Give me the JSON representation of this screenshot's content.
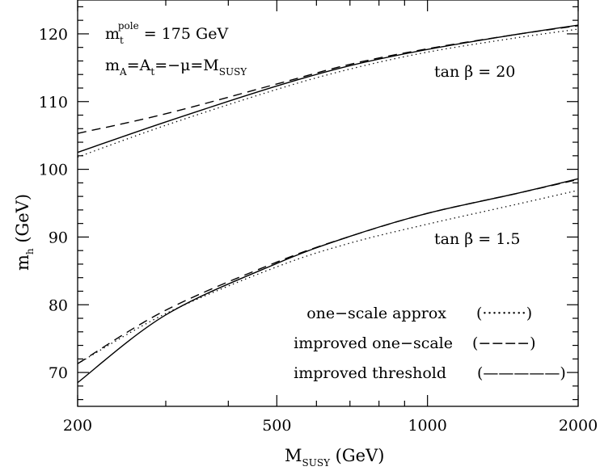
{
  "chart_data": {
    "type": "line",
    "xlabel": {
      "main": "M",
      "sub": "SUSY",
      "unit": " (GeV)"
    },
    "ylabel": {
      "main": "m",
      "sub": "h",
      "unit": " (GeV)"
    },
    "x_scale": "log",
    "xlim": [
      200,
      2000
    ],
    "ylim": [
      65,
      125
    ],
    "x_ticks": [
      200,
      500,
      1000,
      2000
    ],
    "y_ticks": [
      70,
      80,
      90,
      100,
      110,
      120
    ],
    "annotations": {
      "mtop": {
        "m": "m",
        "sub": "t",
        "sup": "pole",
        "rest": " = 175 GeV"
      },
      "params": {
        "m": "m",
        "a_sub": "A",
        "eq1": "=A",
        "t_sub": "t",
        "eq2": "=−μ=M",
        "susy_sub": "SUSY"
      },
      "tanb20": "tan β = 20",
      "tanb15": "tan β = 1.5"
    },
    "legend": [
      {
        "label": "one−scale approx",
        "sample": "(·········)",
        "style": "dotted"
      },
      {
        "label": "improved one−scale",
        "sample": "(−−−−)",
        "style": "dashed"
      },
      {
        "label": "improved threshold",
        "sample": "(—————)",
        "style": "solid"
      }
    ],
    "series": [
      {
        "group": "tanb20",
        "style": "dotted",
        "x": [
          200,
          300,
          500,
          700,
          1000,
          1500,
          2000
        ],
        "y": [
          101.8,
          106.5,
          111.8,
          114.8,
          117.3,
          119.4,
          120.7
        ]
      },
      {
        "group": "tanb20",
        "style": "dashed",
        "x": [
          200,
          300,
          500,
          700,
          1000,
          1500,
          2000
        ],
        "y": [
          105.3,
          108.2,
          112.6,
          115.5,
          117.8,
          119.9,
          121.2
        ]
      },
      {
        "group": "tanb20",
        "style": "solid",
        "x": [
          200,
          300,
          500,
          700,
          1000,
          1500,
          2000
        ],
        "y": [
          102.5,
          107.0,
          112.3,
          115.3,
          117.7,
          119.9,
          121.3
        ]
      },
      {
        "group": "tanb15",
        "style": "dotted",
        "x": [
          200,
          300,
          500,
          700,
          1000,
          1500,
          2000
        ],
        "y": [
          71.3,
          78.7,
          85.6,
          89.1,
          91.9,
          94.8,
          96.9
        ]
      },
      {
        "group": "tanb15",
        "style": "dashed",
        "x": [
          200,
          300,
          500,
          700,
          1000,
          1500,
          2000
        ],
        "y": [
          71.3,
          79.2,
          86.3,
          90.1,
          93.5,
          96.4,
          98.5
        ]
      },
      {
        "group": "tanb15",
        "style": "solid",
        "x": [
          200,
          300,
          500,
          700,
          1000,
          1500,
          2000
        ],
        "y": [
          68.5,
          78.5,
          86.1,
          90.1,
          93.5,
          96.4,
          98.6
        ]
      }
    ]
  }
}
